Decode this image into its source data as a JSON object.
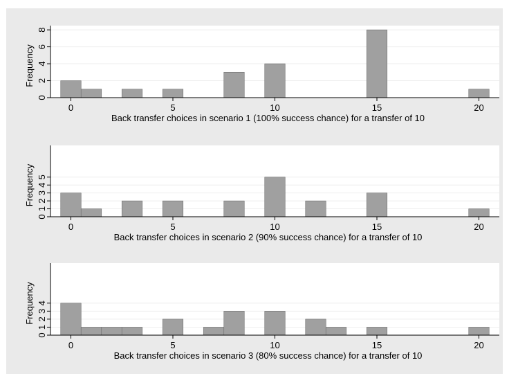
{
  "colors": {
    "outer_background": "#eaeaea",
    "plot_background": "#ffffff",
    "bar_fill": "#a0a0a0",
    "bar_stroke": "#6e6e6e",
    "grid": "#eeeeee"
  },
  "chart_data": [
    {
      "type": "bar",
      "bar_width": 1,
      "x": [
        0,
        1,
        3,
        5,
        8,
        10,
        15,
        20
      ],
      "values": [
        2,
        1,
        1,
        1,
        3,
        4,
        8,
        1
      ],
      "xticks": [
        "0",
        "5",
        "10",
        "15",
        "20"
      ],
      "xtick_values": [
        0,
        5,
        10,
        15,
        20
      ],
      "yticks": [
        "0",
        "2",
        "4",
        "6",
        "8"
      ],
      "ytick_values": [
        0,
        2,
        4,
        6,
        8
      ],
      "xlim": [
        -1,
        21
      ],
      "ylim": [
        0,
        8.5
      ],
      "xlabel": "Back transfer choices in scenario 1 (100% success chance) for a transfer of 10",
      "ylabel": "Frequency",
      "grid": true
    },
    {
      "type": "bar",
      "bar_width": 1,
      "x": [
        0,
        1,
        3,
        5,
        8,
        10,
        12,
        15,
        20
      ],
      "values": [
        3,
        1,
        2,
        2,
        2,
        5,
        2,
        3,
        1
      ],
      "xticks": [
        "0",
        "5",
        "10",
        "15",
        "20"
      ],
      "xtick_values": [
        0,
        5,
        10,
        15,
        20
      ],
      "yticks": [
        "0",
        "1",
        "2",
        "3",
        "4",
        "5"
      ],
      "ytick_values": [
        0,
        1,
        2,
        3,
        4,
        5
      ],
      "xlim": [
        -1,
        21
      ],
      "ylim": [
        0,
        9
      ],
      "xlabel": "Back transfer choices in scenario 2 (90% success chance) for a transfer of 10",
      "ylabel": "Frequency",
      "grid": true
    },
    {
      "type": "bar",
      "bar_width": 1,
      "x": [
        0,
        1,
        2,
        3,
        5,
        7,
        8,
        10,
        12,
        13,
        15,
        20
      ],
      "values": [
        4,
        1,
        1,
        1,
        2,
        1,
        3,
        3,
        2,
        1,
        1,
        1
      ],
      "xticks": [
        "0",
        "5",
        "10",
        "15",
        "20"
      ],
      "xtick_values": [
        0,
        5,
        10,
        15,
        20
      ],
      "yticks": [
        "0",
        "1",
        "2",
        "3",
        "4"
      ],
      "ytick_values": [
        0,
        1,
        2,
        3,
        4
      ],
      "xlim": [
        -1,
        21
      ],
      "ylim": [
        0,
        9
      ],
      "xlabel": "Back transfer choices in scenario 3 (80% success chance) for a transfer of 10",
      "ylabel": "Frequency",
      "grid": true
    }
  ]
}
